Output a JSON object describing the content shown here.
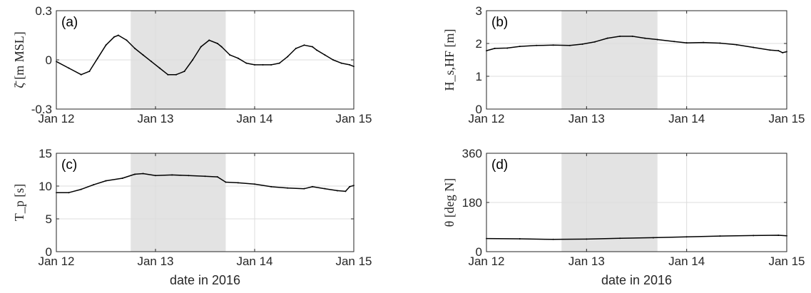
{
  "figure": {
    "xlabel": "date in 2016",
    "shade_range": [
      "2016-01-12T18:00",
      "2016-01-13T17:00"
    ],
    "colors": {
      "line": "#000000",
      "shade": "#e3e3e3",
      "grid": "#dcdcdc",
      "axis": "#262626"
    }
  },
  "chart_data": [
    {
      "type": "line",
      "panel_label": "(a)",
      "ylabel": "ζ̄ [m MSL]",
      "x_ticks": [
        "Jan 12",
        "Jan 13",
        "Jan 14",
        "Jan 15"
      ],
      "y_ticks": [
        "-0.3",
        "0",
        "0.3"
      ],
      "xlim": [
        "2016-01-12T00:00",
        "2016-01-15T00:00"
      ],
      "ylim": [
        -0.3,
        0.3
      ],
      "grid": true,
      "series": [
        {
          "x": [
            "2016-01-12T00:00",
            "2016-01-12T03:00",
            "2016-01-12T06:00",
            "2016-01-12T08:00",
            "2016-01-12T10:00",
            "2016-01-12T12:00",
            "2016-01-12T14:00",
            "2016-01-12T15:00",
            "2016-01-12T17:00",
            "2016-01-12T19:00",
            "2016-01-12T21:00",
            "2016-01-12T23:00",
            "2016-01-13T01:00",
            "2016-01-13T03:00",
            "2016-01-13T05:00",
            "2016-01-13T07:00",
            "2016-01-13T09:00",
            "2016-01-13T11:00",
            "2016-01-13T13:00",
            "2016-01-13T15:00",
            "2016-01-13T16:00",
            "2016-01-13T18:00",
            "2016-01-13T20:00",
            "2016-01-13T22:00",
            "2016-01-14T00:00",
            "2016-01-14T02:00",
            "2016-01-14T04:00",
            "2016-01-14T06:00",
            "2016-01-14T08:00",
            "2016-01-14T10:00",
            "2016-01-14T12:00",
            "2016-01-14T14:00",
            "2016-01-14T15:00",
            "2016-01-14T17:00",
            "2016-01-14T19:00",
            "2016-01-14T21:00",
            "2016-01-14T23:00",
            "2016-01-15T00:00"
          ],
          "values": [
            -0.01,
            -0.05,
            -0.09,
            -0.07,
            0.01,
            0.09,
            0.14,
            0.15,
            0.12,
            0.07,
            0.03,
            -0.01,
            -0.05,
            -0.09,
            -0.09,
            -0.07,
            0.0,
            0.08,
            0.12,
            0.1,
            0.08,
            0.03,
            0.01,
            -0.02,
            -0.03,
            -0.03,
            -0.03,
            -0.02,
            0.02,
            0.07,
            0.09,
            0.08,
            0.06,
            0.03,
            0.0,
            -0.02,
            -0.03,
            -0.04
          ]
        }
      ]
    },
    {
      "type": "line",
      "panel_label": "(b)",
      "ylabel": "H_s,HF [m]",
      "x_ticks": [
        "Jan 12",
        "Jan 13",
        "Jan 14",
        "Jan 15"
      ],
      "y_ticks": [
        "0",
        "1",
        "2",
        "3"
      ],
      "xlim": [
        "2016-01-12T00:00",
        "2016-01-15T00:00"
      ],
      "ylim": [
        0,
        3
      ],
      "grid": true,
      "series": [
        {
          "x": [
            "2016-01-12T00:00",
            "2016-01-12T02:00",
            "2016-01-12T05:00",
            "2016-01-12T08:00",
            "2016-01-12T12:00",
            "2016-01-12T16:00",
            "2016-01-12T20:00",
            "2016-01-12T23:00",
            "2016-01-13T02:00",
            "2016-01-13T05:00",
            "2016-01-13T08:00",
            "2016-01-13T11:00",
            "2016-01-13T14:00",
            "2016-01-13T17:00",
            "2016-01-13T21:00",
            "2016-01-14T00:00",
            "2016-01-14T04:00",
            "2016-01-14T08:00",
            "2016-01-14T12:00",
            "2016-01-14T16:00",
            "2016-01-14T20:00",
            "2016-01-14T22:00",
            "2016-01-14T23:00",
            "2016-01-15T00:00"
          ],
          "values": [
            1.78,
            1.85,
            1.86,
            1.91,
            1.94,
            1.95,
            1.94,
            1.98,
            2.05,
            2.16,
            2.22,
            2.22,
            2.16,
            2.12,
            2.06,
            2.02,
            2.03,
            2.01,
            1.96,
            1.88,
            1.8,
            1.78,
            1.72,
            1.75
          ]
        }
      ]
    },
    {
      "type": "line",
      "panel_label": "(c)",
      "ylabel": "T_p [s]",
      "x_ticks": [
        "Jan 12",
        "Jan 13",
        "Jan 14",
        "Jan 15"
      ],
      "y_ticks": [
        "0",
        "5",
        "10",
        "15"
      ],
      "xlim": [
        "2016-01-12T00:00",
        "2016-01-15T00:00"
      ],
      "ylim": [
        0,
        15
      ],
      "grid": true,
      "series": [
        {
          "x": [
            "2016-01-12T00:00",
            "2016-01-12T03:00",
            "2016-01-12T06:00",
            "2016-01-12T09:00",
            "2016-01-12T12:00",
            "2016-01-12T16:00",
            "2016-01-12T19:00",
            "2016-01-12T21:00",
            "2016-01-13T00:00",
            "2016-01-13T04:00",
            "2016-01-13T08:00",
            "2016-01-13T12:00",
            "2016-01-13T15:00",
            "2016-01-13T17:00",
            "2016-01-13T20:00",
            "2016-01-14T00:00",
            "2016-01-14T04:00",
            "2016-01-14T08:00",
            "2016-01-14T12:00",
            "2016-01-14T14:00",
            "2016-01-14T17:00",
            "2016-01-14T20:00",
            "2016-01-14T22:00",
            "2016-01-14T23:00",
            "2016-01-15T00:00"
          ],
          "values": [
            9.0,
            9.0,
            9.5,
            10.2,
            10.8,
            11.2,
            11.8,
            11.9,
            11.6,
            11.7,
            11.6,
            11.5,
            11.4,
            10.6,
            10.5,
            10.3,
            9.9,
            9.7,
            9.6,
            9.9,
            9.6,
            9.3,
            9.2,
            9.9,
            10.1
          ]
        }
      ]
    },
    {
      "type": "line",
      "panel_label": "(d)",
      "ylabel": "θ [deg N]",
      "x_ticks": [
        "Jan 12",
        "Jan 13",
        "Jan 14",
        "Jan 15"
      ],
      "y_ticks": [
        "0",
        "180",
        "360"
      ],
      "xlim": [
        "2016-01-12T00:00",
        "2016-01-15T00:00"
      ],
      "ylim": [
        0,
        360
      ],
      "grid": true,
      "series": [
        {
          "x": [
            "2016-01-12T00:00",
            "2016-01-12T08:00",
            "2016-01-12T16:00",
            "2016-01-13T00:00",
            "2016-01-13T08:00",
            "2016-01-13T16:00",
            "2016-01-14T00:00",
            "2016-01-14T08:00",
            "2016-01-14T16:00",
            "2016-01-14T22:00",
            "2016-01-15T00:00"
          ],
          "values": [
            48,
            47,
            45,
            46,
            49,
            51,
            54,
            57,
            59,
            60,
            58
          ]
        }
      ]
    }
  ]
}
